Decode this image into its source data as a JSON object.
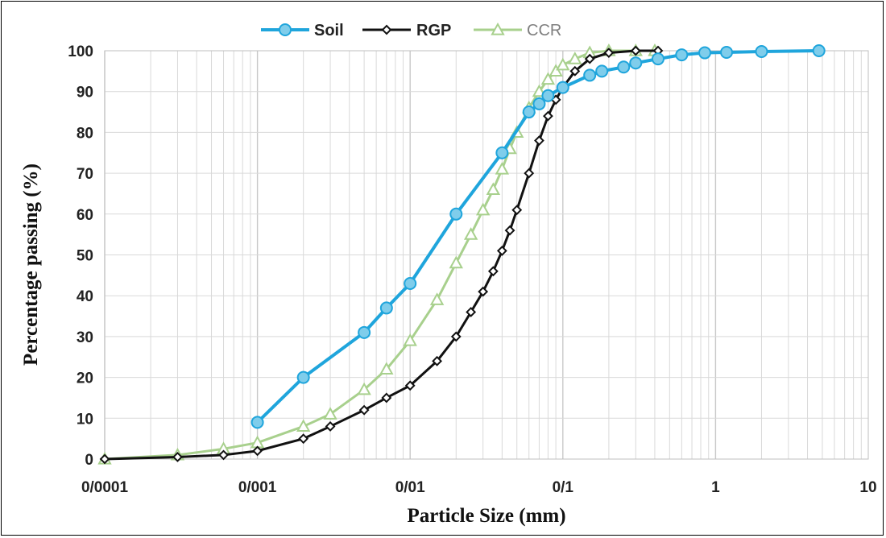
{
  "chart_data": {
    "type": "line",
    "x_scale": "log",
    "xlabel": "Particle Size (mm)",
    "ylabel": "Percentage passing (%)",
    "xlim": [
      0.0001,
      10
    ],
    "ylim": [
      0,
      100
    ],
    "grid": true,
    "legend_position": "top",
    "x_tick_labels": [
      "0/0001",
      "0/001",
      "0/01",
      "0/1",
      "1",
      "10"
    ],
    "y_ticks": [
      0,
      10,
      20,
      30,
      40,
      50,
      60,
      70,
      80,
      90,
      100
    ],
    "series": [
      {
        "name": "Soil",
        "color": "#1fa5dc",
        "marker": "circle",
        "x": [
          0.001,
          0.002,
          0.005,
          0.007,
          0.01,
          0.02,
          0.04,
          0.06,
          0.07,
          0.08,
          0.1,
          0.15,
          0.18,
          0.25,
          0.3,
          0.42,
          0.6,
          0.85,
          1.18,
          2.0,
          4.75
        ],
        "y": [
          9,
          20,
          31,
          37,
          43,
          60,
          75,
          85,
          87,
          89,
          91,
          94,
          95,
          96,
          97,
          98,
          99,
          99.5,
          99.6,
          99.8,
          100
        ]
      },
      {
        "name": "RGP",
        "color": "#111111",
        "marker": "diamond",
        "x": [
          0.0001,
          0.0003,
          0.0006,
          0.001,
          0.002,
          0.003,
          0.005,
          0.007,
          0.01,
          0.015,
          0.02,
          0.025,
          0.03,
          0.035,
          0.04,
          0.045,
          0.05,
          0.06,
          0.07,
          0.08,
          0.09,
          0.1,
          0.12,
          0.15,
          0.2,
          0.3,
          0.42
        ],
        "y": [
          0,
          0.5,
          1,
          2,
          5,
          8,
          12,
          15,
          18,
          24,
          30,
          36,
          41,
          46,
          51,
          56,
          61,
          70,
          78,
          84,
          88,
          91,
          95,
          98,
          99.5,
          100,
          100
        ]
      },
      {
        "name": "CCR",
        "color": "#a8d08d",
        "marker": "triangle",
        "x": [
          0.0001,
          0.0003,
          0.0006,
          0.001,
          0.002,
          0.003,
          0.005,
          0.007,
          0.01,
          0.015,
          0.02,
          0.025,
          0.03,
          0.035,
          0.04,
          0.045,
          0.05,
          0.06,
          0.07,
          0.08,
          0.09,
          0.1,
          0.12,
          0.15,
          0.2,
          0.3,
          0.4
        ],
        "y": [
          0,
          1,
          2.5,
          4,
          8,
          11,
          17,
          22,
          29,
          39,
          48,
          55,
          61,
          66,
          71,
          76,
          80,
          86,
          90,
          93,
          95,
          96.5,
          98,
          99.5,
          100,
          100,
          100
        ]
      }
    ]
  }
}
